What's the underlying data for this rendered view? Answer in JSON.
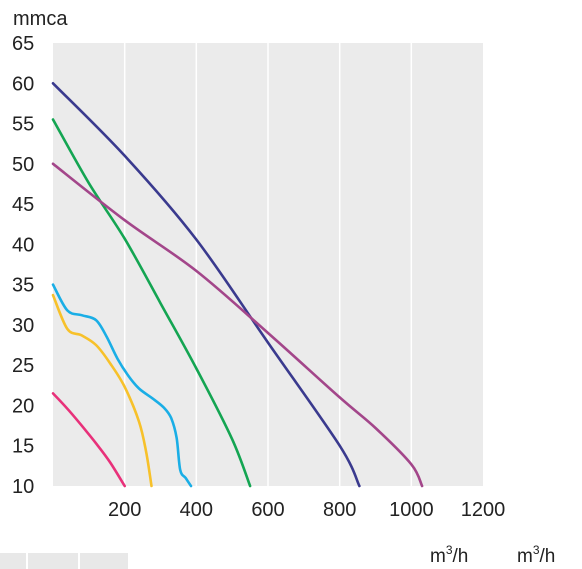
{
  "chart_data": {
    "type": "line",
    "ylabel": "mmca",
    "xunit_label": [
      "m",
      "3",
      "/h"
    ],
    "xunit_label_2": [
      "m",
      "3",
      "/h"
    ],
    "xlim": [
      0,
      1200
    ],
    "ylim": [
      10,
      65
    ],
    "xticks": [
      200,
      400,
      600,
      800,
      1000,
      1200
    ],
    "yticks": [
      10,
      15,
      20,
      25,
      30,
      35,
      40,
      45,
      50,
      55,
      60,
      65
    ],
    "grid": "vertical",
    "background": "#ebebeb",
    "series": [
      {
        "color": "#e8317a",
        "x": [
          0,
          40,
          80,
          120,
          160,
          200
        ],
        "y": [
          21.5,
          19.6,
          17.5,
          15.3,
          12.9,
          10
        ]
      },
      {
        "color": "#f7c12a",
        "x": [
          0,
          40,
          80,
          120,
          160,
          200,
          240,
          260,
          275
        ],
        "y": [
          33.7,
          29.5,
          28.7,
          27.5,
          25.2,
          22.3,
          18.0,
          14.2,
          10
        ]
      },
      {
        "color": "#1aaee6",
        "x": [
          0,
          40,
          80,
          120,
          150,
          180,
          210,
          240,
          280,
          310,
          330,
          345,
          355,
          370,
          385
        ],
        "y": [
          35.0,
          31.8,
          31.2,
          30.6,
          28.5,
          25.8,
          23.7,
          22.1,
          20.8,
          19.7,
          18.4,
          16.0,
          12.0,
          11.0,
          10
        ]
      },
      {
        "color": "#14a552",
        "x": [
          0,
          100,
          200,
          300,
          400,
          500,
          550
        ],
        "y": [
          55.5,
          47.6,
          40.7,
          32.7,
          24.6,
          15.8,
          10
        ]
      },
      {
        "color": "#3a3a8e",
        "x": [
          0,
          200,
          400,
          600,
          800,
          855
        ],
        "y": [
          60.0,
          51.0,
          40.6,
          27.8,
          15.0,
          10
        ]
      },
      {
        "color": "#a3468a",
        "x": [
          0,
          200,
          400,
          600,
          800,
          900,
          1000,
          1030
        ],
        "y": [
          50.0,
          43.0,
          36.7,
          29.0,
          21.0,
          17.2,
          12.7,
          10
        ]
      }
    ]
  }
}
